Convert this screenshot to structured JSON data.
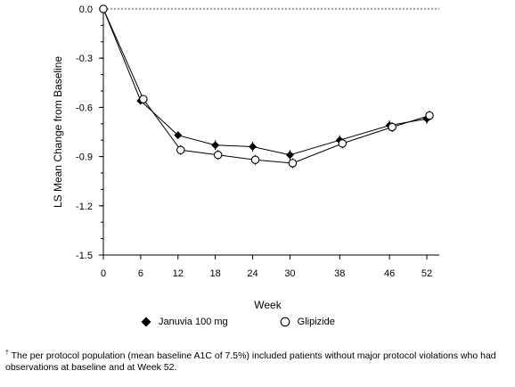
{
  "chart_data": {
    "type": "line",
    "xlabel": "Week",
    "ylabel": "LS Mean Change from Baseline",
    "xlim": [
      0,
      54
    ],
    "ylim": [
      -1.5,
      0.0
    ],
    "x_ticks": [
      0,
      6,
      12,
      18,
      24,
      30,
      38,
      46,
      52
    ],
    "y_ticks": [
      0.0,
      -0.3,
      -0.6,
      -0.9,
      -1.2,
      -1.5
    ],
    "y_tick_labels": [
      "0.0",
      "-0.3",
      "-0.6",
      "-0.9",
      "-1.2",
      "-1.5"
    ],
    "reference_line": 0.0,
    "grid": false,
    "legend_position": "bottom",
    "series": [
      {
        "name": "Januvia 100 mg",
        "marker": "filled-diamond",
        "x": [
          0,
          6,
          12,
          18,
          24,
          30,
          38,
          46,
          52
        ],
        "values": [
          0.0,
          -0.56,
          -0.77,
          -0.83,
          -0.84,
          -0.89,
          -0.8,
          -0.71,
          -0.67
        ],
        "error": [
          0,
          0.02,
          0.02,
          0.03,
          0.03,
          0.03,
          0.03,
          0.03,
          0.03
        ]
      },
      {
        "name": "Glipizide",
        "marker": "open-circle",
        "x": [
          0,
          6,
          12,
          18,
          24,
          30,
          38,
          46,
          52
        ],
        "values": [
          0.0,
          -0.55,
          -0.86,
          -0.89,
          -0.92,
          -0.94,
          -0.82,
          -0.72,
          -0.65
        ],
        "error": [
          0,
          0.02,
          0.03,
          0.03,
          0.03,
          0.03,
          0.03,
          0.03,
          0.03
        ]
      }
    ]
  },
  "footnote": {
    "symbol": "†",
    "text": " The per protocol population (mean baseline A1C of 7.5%) included patients without major protocol violations who had observations at baseline and at Week 52."
  }
}
